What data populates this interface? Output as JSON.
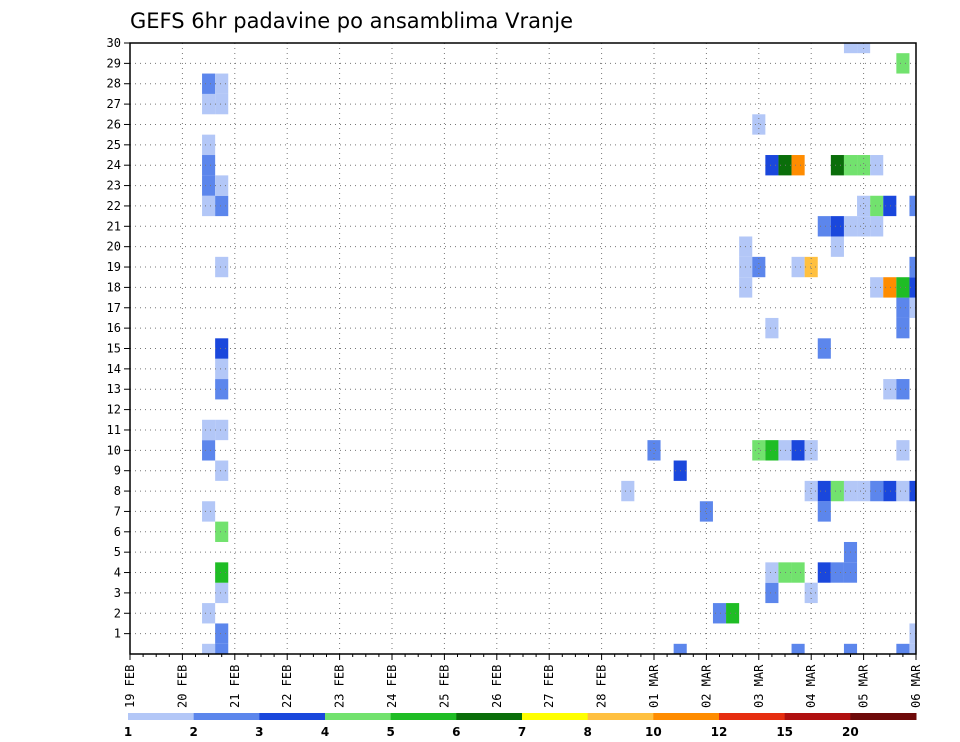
{
  "chart_data": {
    "type": "heatmap",
    "title": "GEFS 6hr padavine po ansamblima Vranje",
    "xlabel": "",
    "ylabel": "",
    "x_ticks": [
      "19 FEB",
      "20 FEB",
      "21 FEB",
      "22 FEB",
      "23 FEB",
      "24 FEB",
      "25 FEB",
      "26 FEB",
      "27 FEB",
      "28 FEB",
      "01 MAR",
      "02 MAR",
      "03 MAR",
      "04 MAR",
      "05 MAR",
      "06 MAR"
    ],
    "y_ticks": [
      "1",
      "2",
      "3",
      "4",
      "5",
      "6",
      "7",
      "8",
      "9",
      "10",
      "11",
      "12",
      "13",
      "14",
      "15",
      "16",
      "17",
      "18",
      "19",
      "20",
      "21",
      "22",
      "23",
      "24",
      "25",
      "26",
      "27",
      "28",
      "29",
      "30"
    ],
    "ylim": [
      0,
      30
    ],
    "xlim_steps": [
      0,
      60
    ],
    "step_hours": 6,
    "grid": true,
    "colorbar": {
      "colors": [
        "#b3c7f7",
        "#5c86ec",
        "#1a47dc",
        "#72e26e",
        "#1fbd25",
        "#0a6e0a",
        "#ffff00",
        "#ffc040",
        "#ff8c00",
        "#e62e10",
        "#b01010",
        "#6e0a0a"
      ],
      "labels": [
        "1",
        "2",
        "3",
        "4",
        "5",
        "6",
        "7",
        "8",
        "10",
        "12",
        "15",
        "20"
      ]
    },
    "cells": [
      {
        "member": 0,
        "step": 6,
        "level": 1
      },
      {
        "member": 0,
        "step": 7,
        "level": 2
      },
      {
        "member": 0,
        "step": 42,
        "level": 2
      },
      {
        "member": 0,
        "step": 51,
        "level": 2
      },
      {
        "member": 0,
        "step": 55,
        "level": 2
      },
      {
        "member": 0,
        "step": 59,
        "level": 2
      },
      {
        "member": 0,
        "step": 60,
        "level": 1
      },
      {
        "member": 1,
        "step": 7,
        "level": 2
      },
      {
        "member": 1,
        "step": 60,
        "level": 1
      },
      {
        "member": 2,
        "step": 6,
        "level": 1
      },
      {
        "member": 2,
        "step": 45,
        "level": 2
      },
      {
        "member": 2,
        "step": 46,
        "level": 5
      },
      {
        "member": 3,
        "step": 7,
        "level": 1
      },
      {
        "member": 3,
        "step": 49,
        "level": 2
      },
      {
        "member": 3,
        "step": 52,
        "level": 1
      },
      {
        "member": 4,
        "step": 7,
        "level": 5
      },
      {
        "member": 4,
        "step": 49,
        "level": 1
      },
      {
        "member": 4,
        "step": 50,
        "level": 4
      },
      {
        "member": 4,
        "step": 51,
        "level": 4
      },
      {
        "member": 4,
        "step": 53,
        "level": 3
      },
      {
        "member": 4,
        "step": 54,
        "level": 2
      },
      {
        "member": 4,
        "step": 55,
        "level": 2
      },
      {
        "member": 5,
        "step": 55,
        "level": 2
      },
      {
        "member": 6,
        "step": 7,
        "level": 4
      },
      {
        "member": 7,
        "step": 6,
        "level": 1
      },
      {
        "member": 7,
        "step": 44,
        "level": 2
      },
      {
        "member": 7,
        "step": 53,
        "level": 2
      },
      {
        "member": 8,
        "step": 38,
        "level": 1
      },
      {
        "member": 8,
        "step": 52,
        "level": 1
      },
      {
        "member": 8,
        "step": 53,
        "level": 3
      },
      {
        "member": 8,
        "step": 54,
        "level": 4
      },
      {
        "member": 8,
        "step": 55,
        "level": 1
      },
      {
        "member": 8,
        "step": 56,
        "level": 1
      },
      {
        "member": 8,
        "step": 57,
        "level": 2
      },
      {
        "member": 8,
        "step": 58,
        "level": 3
      },
      {
        "member": 8,
        "step": 59,
        "level": 1
      },
      {
        "member": 8,
        "step": 60,
        "level": 3
      },
      {
        "member": 9,
        "step": 7,
        "level": 1
      },
      {
        "member": 9,
        "step": 42,
        "level": 3
      },
      {
        "member": 10,
        "step": 6,
        "level": 2
      },
      {
        "member": 10,
        "step": 40,
        "level": 2
      },
      {
        "member": 10,
        "step": 48,
        "level": 4
      },
      {
        "member": 10,
        "step": 49,
        "level": 5
      },
      {
        "member": 10,
        "step": 50,
        "level": 1
      },
      {
        "member": 10,
        "step": 51,
        "level": 3
      },
      {
        "member": 10,
        "step": 52,
        "level": 1
      },
      {
        "member": 10,
        "step": 59,
        "level": 1
      },
      {
        "member": 11,
        "step": 6,
        "level": 1
      },
      {
        "member": 11,
        "step": 7,
        "level": 1
      },
      {
        "member": 13,
        "step": 7,
        "level": 2
      },
      {
        "member": 13,
        "step": 58,
        "level": 1
      },
      {
        "member": 13,
        "step": 59,
        "level": 2
      },
      {
        "member": 14,
        "step": 7,
        "level": 1
      },
      {
        "member": 15,
        "step": 7,
        "level": 3
      },
      {
        "member": 15,
        "step": 53,
        "level": 2
      },
      {
        "member": 16,
        "step": 49,
        "level": 1
      },
      {
        "member": 16,
        "step": 59,
        "level": 2
      },
      {
        "member": 17,
        "step": 59,
        "level": 2
      },
      {
        "member": 17,
        "step": 60,
        "level": 1
      },
      {
        "member": 18,
        "step": 57,
        "level": 1
      },
      {
        "member": 18,
        "step": 58,
        "level": 9
      },
      {
        "member": 18,
        "step": 59,
        "level": 5
      },
      {
        "member": 18,
        "step": 60,
        "level": 3
      },
      {
        "member": 18,
        "step": 47,
        "level": 1
      },
      {
        "member": 19,
        "step": 7,
        "level": 1
      },
      {
        "member": 19,
        "step": 47,
        "level": 1
      },
      {
        "member": 19,
        "step": 48,
        "level": 2
      },
      {
        "member": 19,
        "step": 51,
        "level": 1
      },
      {
        "member": 19,
        "step": 52,
        "level": 8
      },
      {
        "member": 19,
        "step": 60,
        "level": 2
      },
      {
        "member": 20,
        "step": 47,
        "level": 1
      },
      {
        "member": 20,
        "step": 54,
        "level": 1
      },
      {
        "member": 21,
        "step": 53,
        "level": 2
      },
      {
        "member": 21,
        "step": 54,
        "level": 3
      },
      {
        "member": 21,
        "step": 55,
        "level": 1
      },
      {
        "member": 21,
        "step": 56,
        "level": 1
      },
      {
        "member": 21,
        "step": 57,
        "level": 1
      },
      {
        "member": 22,
        "step": 6,
        "level": 1
      },
      {
        "member": 22,
        "step": 7,
        "level": 2
      },
      {
        "member": 22,
        "step": 56,
        "level": 1
      },
      {
        "member": 22,
        "step": 57,
        "level": 4
      },
      {
        "member": 22,
        "step": 58,
        "level": 3
      },
      {
        "member": 22,
        "step": 60,
        "level": 2
      },
      {
        "member": 23,
        "step": 6,
        "level": 2
      },
      {
        "member": 23,
        "step": 7,
        "level": 1
      },
      {
        "member": 24,
        "step": 6,
        "level": 2
      },
      {
        "member": 24,
        "step": 49,
        "level": 3
      },
      {
        "member": 24,
        "step": 50,
        "level": 6
      },
      {
        "member": 24,
        "step": 51,
        "level": 9
      },
      {
        "member": 24,
        "step": 54,
        "level": 6
      },
      {
        "member": 24,
        "step": 55,
        "level": 4
      },
      {
        "member": 24,
        "step": 56,
        "level": 4
      },
      {
        "member": 24,
        "step": 57,
        "level": 1
      },
      {
        "member": 25,
        "step": 6,
        "level": 1
      },
      {
        "member": 26,
        "step": 48,
        "level": 1
      },
      {
        "member": 27,
        "step": 6,
        "level": 1
      },
      {
        "member": 27,
        "step": 7,
        "level": 1
      },
      {
        "member": 28,
        "step": 6,
        "level": 2
      },
      {
        "member": 28,
        "step": 7,
        "level": 1
      },
      {
        "member": 29,
        "step": 59,
        "level": 4
      },
      {
        "member": 30,
        "step": 55,
        "level": 1
      },
      {
        "member": 30,
        "step": 56,
        "level": 1
      }
    ]
  }
}
